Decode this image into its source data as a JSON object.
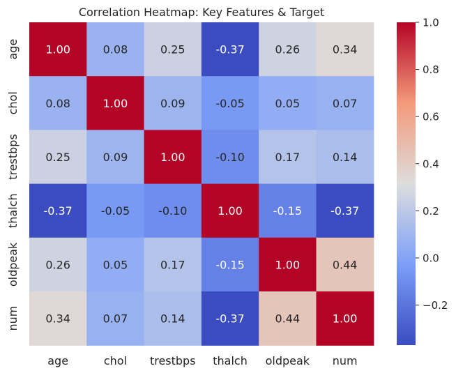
{
  "chart_data": {
    "type": "heatmap",
    "title": "Correlation Heatmap: Key Features & Target",
    "xlabel": "",
    "ylabel": "",
    "x_categories": [
      "age",
      "chol",
      "trestbps",
      "thalch",
      "oldpeak",
      "num"
    ],
    "y_categories": [
      "age",
      "chol",
      "trestbps",
      "thalch",
      "oldpeak",
      "num"
    ],
    "values": [
      [
        1.0,
        0.08,
        0.25,
        -0.37,
        0.26,
        0.34
      ],
      [
        0.08,
        1.0,
        0.09,
        -0.05,
        0.05,
        0.07
      ],
      [
        0.25,
        0.09,
        1.0,
        -0.1,
        0.17,
        0.14
      ],
      [
        -0.37,
        -0.05,
        -0.1,
        1.0,
        -0.15,
        -0.37
      ],
      [
        0.26,
        0.05,
        0.17,
        -0.15,
        1.0,
        0.44
      ],
      [
        0.34,
        0.07,
        0.14,
        -0.37,
        0.44,
        1.0
      ]
    ],
    "annotations": [
      [
        "1.00",
        "0.08",
        "0.25",
        "-0.37",
        "0.26",
        "0.34"
      ],
      [
        "0.08",
        "1.00",
        "0.09",
        "-0.05",
        "0.05",
        "0.07"
      ],
      [
        "0.25",
        "0.09",
        "1.00",
        "-0.10",
        "0.17",
        "0.14"
      ],
      [
        "-0.37",
        "-0.05",
        "-0.10",
        "1.00",
        "-0.15",
        "-0.37"
      ],
      [
        "0.26",
        "0.05",
        "0.17",
        "-0.15",
        "1.00",
        "0.44"
      ],
      [
        "0.34",
        "0.07",
        "0.14",
        "-0.37",
        "0.44",
        "1.00"
      ]
    ],
    "colormap": "coolwarm",
    "color_range": [
      -0.37,
      1.0
    ],
    "colorbar_ticks": [
      1.0,
      0.8,
      0.6,
      0.4,
      0.2,
      0.0,
      -0.2
    ],
    "colorbar_tick_labels": [
      "1.0",
      "0.8",
      "0.6",
      "0.4",
      "0.2",
      "0.0",
      "−0.2"
    ],
    "grid": false,
    "legend": "colorbar-right"
  }
}
